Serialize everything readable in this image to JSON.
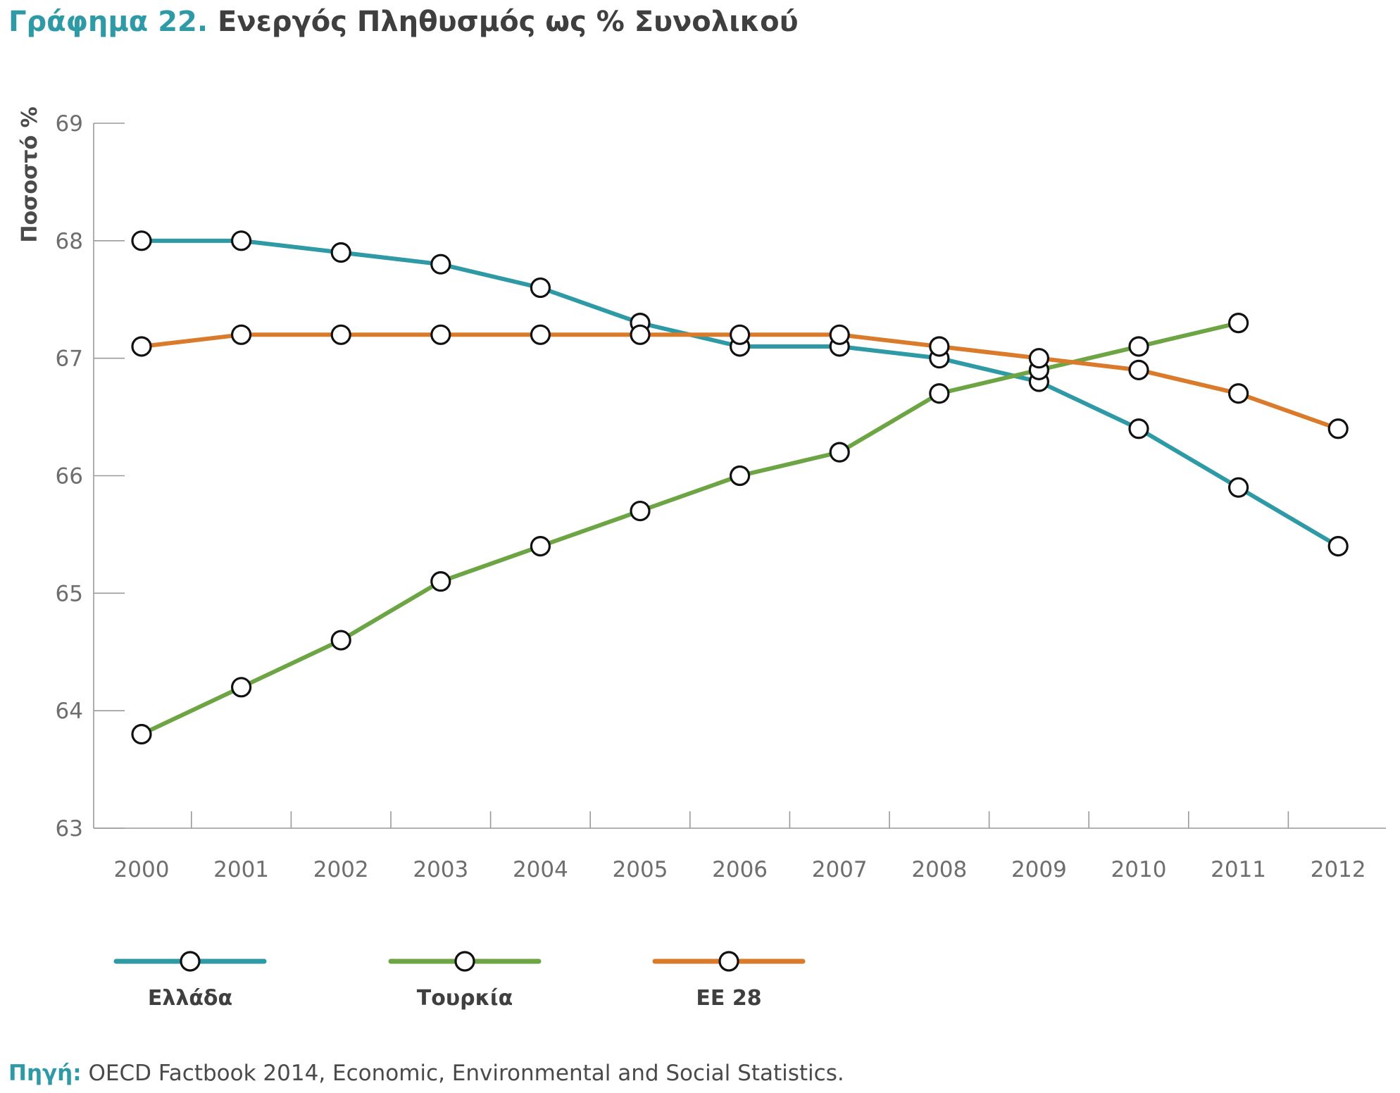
{
  "title": {
    "number": "Γράφημα 22.",
    "text": "Ενεργός Πληθυσμός ως % Συνολικού"
  },
  "source": {
    "label": "Πηγή:",
    "text": "OECD Factbook 2014, Economic, Environmental and Social Statistics."
  },
  "chart_data": {
    "type": "line",
    "title": "Ενεργός Πληθυσμός ως % Συνολικού",
    "xlabel": "",
    "ylabel": "Ποσοστό %",
    "ylim": [
      63,
      69
    ],
    "yticks": [
      "63",
      "64",
      "65",
      "66",
      "67",
      "68",
      "69"
    ],
    "categories": [
      "2000",
      "2001",
      "2002",
      "2003",
      "2004",
      "2005",
      "2006",
      "2007",
      "2008",
      "2009",
      "2010",
      "2011",
      "2012"
    ],
    "grid": false,
    "legend_position": "bottom",
    "series": [
      {
        "name": "Ελλάδα",
        "color": "#2e9aa6",
        "values": [
          68.0,
          68.0,
          67.9,
          67.8,
          67.6,
          67.3,
          67.1,
          67.1,
          67.0,
          66.8,
          66.4,
          65.9,
          65.4
        ]
      },
      {
        "name": "Τουρκία",
        "color": "#6ea544",
        "values": [
          63.8,
          64.2,
          64.6,
          65.1,
          65.4,
          65.7,
          66.0,
          66.2,
          66.7,
          66.9,
          67.1,
          67.3,
          null
        ]
      },
      {
        "name": "ΕΕ 28",
        "color": "#d97b2b",
        "values": [
          67.1,
          67.2,
          67.2,
          67.2,
          67.2,
          67.2,
          67.2,
          67.2,
          67.1,
          67.0,
          66.9,
          66.7,
          66.4
        ]
      }
    ]
  }
}
